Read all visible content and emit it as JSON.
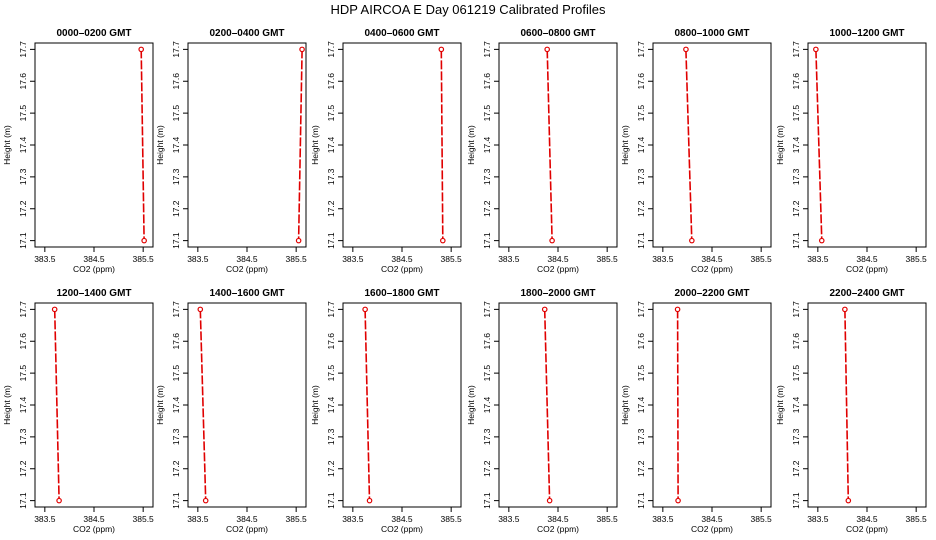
{
  "figure": {
    "title": "HDP  AIRCOA E  Day 061219  Calibrated Profiles"
  },
  "style": {
    "line_color": "#e00000",
    "marker_color": "#e00000",
    "axis_color": "#000000",
    "background": "#ffffff"
  },
  "chart_data": [
    {
      "type": "line",
      "title": "0000–0200 GMT",
      "xlabel": "CO2 (ppm)",
      "ylabel": "Height (m)",
      "xlim": [
        383.3,
        385.7
      ],
      "ylim": [
        17.08,
        17.72
      ],
      "xticks": [
        "383.5",
        "384.5",
        "385.5"
      ],
      "yticks": [
        "17.1",
        "17.2",
        "17.3",
        "17.4",
        "17.5",
        "17.6",
        "17.7"
      ],
      "series": [
        {
          "x": [
            385.46,
            385.52
          ],
          "y": [
            17.7,
            17.1
          ]
        }
      ]
    },
    {
      "type": "line",
      "title": "0200–0400 GMT",
      "xlabel": "CO2 (ppm)",
      "ylabel": "Height (m)",
      "xlim": [
        383.3,
        385.7
      ],
      "ylim": [
        17.08,
        17.72
      ],
      "xticks": [
        "383.5",
        "384.5",
        "385.5"
      ],
      "yticks": [
        "17.1",
        "17.2",
        "17.3",
        "17.4",
        "17.5",
        "17.6",
        "17.7"
      ],
      "series": [
        {
          "x": [
            385.62,
            385.55
          ],
          "y": [
            17.7,
            17.1
          ]
        }
      ]
    },
    {
      "type": "line",
      "title": "0400–0600 GMT",
      "xlabel": "CO2 (ppm)",
      "ylabel": "Height (m)",
      "xlim": [
        383.3,
        385.7
      ],
      "ylim": [
        17.08,
        17.72
      ],
      "xticks": [
        "383.5",
        "384.5",
        "385.5"
      ],
      "yticks": [
        "17.1",
        "17.2",
        "17.3",
        "17.4",
        "17.5",
        "17.6",
        "17.7"
      ],
      "series": [
        {
          "x": [
            385.3,
            385.33
          ],
          "y": [
            17.7,
            17.1
          ]
        }
      ]
    },
    {
      "type": "line",
      "title": "0600–0800 GMT",
      "xlabel": "CO2 (ppm)",
      "ylabel": "Height (m)",
      "xlim": [
        383.3,
        385.7
      ],
      "ylim": [
        17.08,
        17.72
      ],
      "xticks": [
        "383.5",
        "384.5",
        "385.5"
      ],
      "yticks": [
        "17.1",
        "17.2",
        "17.3",
        "17.4",
        "17.5",
        "17.6",
        "17.7"
      ],
      "series": [
        {
          "x": [
            384.28,
            384.38
          ],
          "y": [
            17.7,
            17.1
          ]
        }
      ]
    },
    {
      "type": "line",
      "title": "0800–1000 GMT",
      "xlabel": "CO2 (ppm)",
      "ylabel": "Height (m)",
      "xlim": [
        383.3,
        385.7
      ],
      "ylim": [
        17.08,
        17.72
      ],
      "xticks": [
        "383.5",
        "384.5",
        "385.5"
      ],
      "yticks": [
        "17.1",
        "17.2",
        "17.3",
        "17.4",
        "17.5",
        "17.6",
        "17.7"
      ],
      "series": [
        {
          "x": [
            383.97,
            384.09
          ],
          "y": [
            17.7,
            17.1
          ]
        }
      ]
    },
    {
      "type": "line",
      "title": "1000–1200 GMT",
      "xlabel": "CO2 (ppm)",
      "ylabel": "Height (m)",
      "xlim": [
        383.3,
        385.7
      ],
      "ylim": [
        17.08,
        17.72
      ],
      "xticks": [
        "383.5",
        "384.5",
        "385.5"
      ],
      "yticks": [
        "17.1",
        "17.2",
        "17.3",
        "17.4",
        "17.5",
        "17.6",
        "17.7"
      ],
      "series": [
        {
          "x": [
            383.46,
            383.58
          ],
          "y": [
            17.7,
            17.1
          ]
        }
      ]
    },
    {
      "type": "line",
      "title": "1200–1400 GMT",
      "xlabel": "CO2 (ppm)",
      "ylabel": "Height (m)",
      "xlim": [
        383.3,
        385.7
      ],
      "ylim": [
        17.08,
        17.72
      ],
      "xticks": [
        "383.5",
        "384.5",
        "385.5"
      ],
      "yticks": [
        "17.1",
        "17.2",
        "17.3",
        "17.4",
        "17.5",
        "17.6",
        "17.7"
      ],
      "series": [
        {
          "x": [
            383.7,
            383.79
          ],
          "y": [
            17.7,
            17.1
          ]
        }
      ]
    },
    {
      "type": "line",
      "title": "1400–1600 GMT",
      "xlabel": "CO2 (ppm)",
      "ylabel": "Height (m)",
      "xlim": [
        383.3,
        385.7
      ],
      "ylim": [
        17.08,
        17.72
      ],
      "xticks": [
        "383.5",
        "384.5",
        "385.5"
      ],
      "yticks": [
        "17.1",
        "17.2",
        "17.3",
        "17.4",
        "17.5",
        "17.6",
        "17.7"
      ],
      "series": [
        {
          "x": [
            383.55,
            383.66
          ],
          "y": [
            17.7,
            17.1
          ]
        }
      ]
    },
    {
      "type": "line",
      "title": "1600–1800 GMT",
      "xlabel": "CO2 (ppm)",
      "ylabel": "Height (m)",
      "xlim": [
        383.3,
        385.7
      ],
      "ylim": [
        17.08,
        17.72
      ],
      "xticks": [
        "383.5",
        "384.5",
        "385.5"
      ],
      "yticks": [
        "17.1",
        "17.2",
        "17.3",
        "17.4",
        "17.5",
        "17.6",
        "17.7"
      ],
      "series": [
        {
          "x": [
            383.75,
            383.84
          ],
          "y": [
            17.7,
            17.1
          ]
        }
      ]
    },
    {
      "type": "line",
      "title": "1800–2000 GMT",
      "xlabel": "CO2 (ppm)",
      "ylabel": "Height (m)",
      "xlim": [
        383.3,
        385.7
      ],
      "ylim": [
        17.08,
        17.72
      ],
      "xticks": [
        "383.5",
        "384.5",
        "385.5"
      ],
      "yticks": [
        "17.1",
        "17.2",
        "17.3",
        "17.4",
        "17.5",
        "17.6",
        "17.7"
      ],
      "series": [
        {
          "x": [
            384.23,
            384.33
          ],
          "y": [
            17.7,
            17.1
          ]
        }
      ]
    },
    {
      "type": "line",
      "title": "2000–2200 GMT",
      "xlabel": "CO2 (ppm)",
      "ylabel": "Height (m)",
      "xlim": [
        383.3,
        385.7
      ],
      "ylim": [
        17.08,
        17.72
      ],
      "xticks": [
        "383.5",
        "384.5",
        "385.5"
      ],
      "yticks": [
        "17.1",
        "17.2",
        "17.3",
        "17.4",
        "17.5",
        "17.6",
        "17.7"
      ],
      "series": [
        {
          "x": [
            383.8,
            383.81
          ],
          "y": [
            17.7,
            17.1
          ]
        }
      ]
    },
    {
      "type": "line",
      "title": "2200–2400 GMT",
      "xlabel": "CO2 (ppm)",
      "ylabel": "Height (m)",
      "xlim": [
        383.3,
        385.7
      ],
      "ylim": [
        17.08,
        17.72
      ],
      "xticks": [
        "383.5",
        "384.5",
        "385.5"
      ],
      "yticks": [
        "17.1",
        "17.2",
        "17.3",
        "17.4",
        "17.5",
        "17.6",
        "17.7"
      ],
      "series": [
        {
          "x": [
            384.05,
            384.12
          ],
          "y": [
            17.7,
            17.1
          ]
        }
      ]
    }
  ]
}
